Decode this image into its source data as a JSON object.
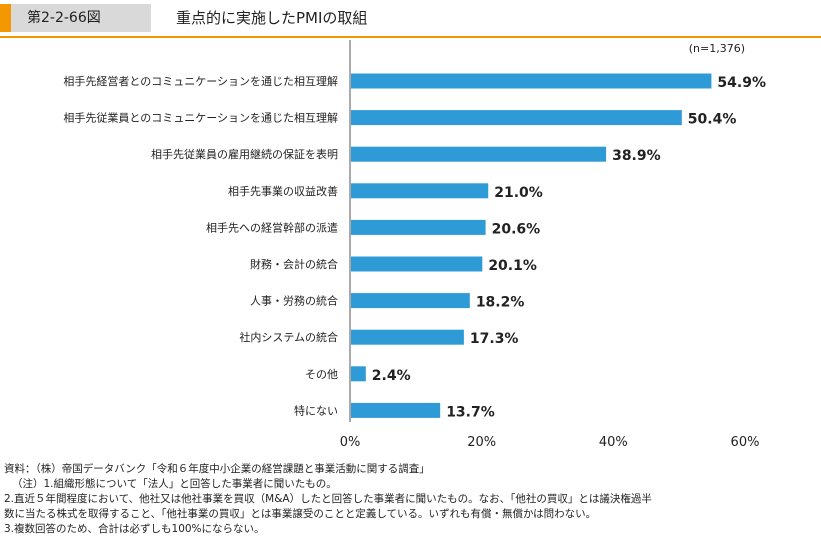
{
  "header": {
    "figure_tag": "第2-2-66図",
    "title": "重点的に実施したPMIの取組",
    "accent_color": "#f39800",
    "rule_color": "#f39800"
  },
  "chart_data": {
    "type": "bar",
    "orientation": "horizontal",
    "note_n": "(n=1,376)",
    "categories": [
      "相手先経営者とのコミュニケーションを通じた相互理解",
      "相手先従業員とのコミュニケーションを通じた相互理解",
      "相手先従業員の雇用継続の保証を表明",
      "相手先事業の収益改善",
      "相手先への経営幹部の派遣",
      "財務・会計の統合",
      "人事・労務の統合",
      "社内システムの統合",
      "その他",
      "特にない"
    ],
    "values": [
      54.9,
      50.4,
      38.9,
      21.0,
      20.6,
      20.1,
      18.2,
      17.3,
      2.4,
      13.7
    ],
    "value_labels": [
      "54.9%",
      "50.4%",
      "38.9%",
      "21.0%",
      "20.6%",
      "20.1%",
      "18.2%",
      "17.3%",
      "2.4%",
      "13.7%"
    ],
    "xlim": [
      0,
      60
    ],
    "xticks": [
      0,
      20,
      40,
      60
    ],
    "xtick_labels": [
      "0%",
      "20%",
      "40%",
      "60%"
    ],
    "bar_color": "#2e9bd6",
    "grid": false
  },
  "notes": [
    "資料：（株）帝国データバンク「令和６年度中小企業の経営課題と事業活動に関する調査」",
    "（注）1.組織形態について「法人」と回答した事業者に聞いたもの。",
    "2.直近５年間程度において、他社又は他社事業を買収（M&A）したと回答した事業者に聞いたもの。なお、「他社の買収」とは議決権過半",
    "数に当たる株式を取得すること、「他社事業の買収」とは事業譲受のことと定義している。いずれも有償・無償かは問わない。",
    "3.複数回答のため、合計は必ずしも100%にならない。"
  ]
}
